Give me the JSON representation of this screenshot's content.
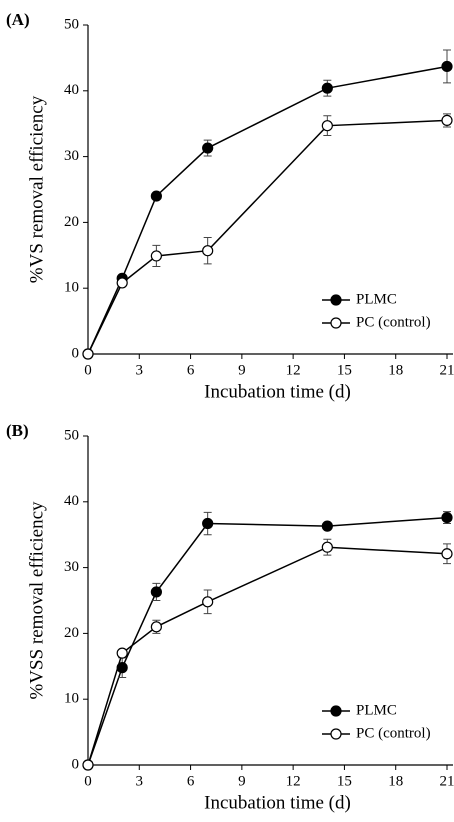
{
  "chart_data": [
    {
      "type": "line",
      "panel_label": "(A)",
      "xlabel": "Incubation time (d)",
      "ylabel": "%VS removal efficiency",
      "x": [
        0,
        2,
        4,
        7,
        14,
        21
      ],
      "series": [
        {
          "name": "PLMC",
          "color": "#000000",
          "marker_fill": "#000000",
          "values": [
            0,
            11.5,
            24,
            31.3,
            40.4,
            43.7
          ],
          "errors": [
            0,
            0.5,
            0.3,
            1.2,
            1.2,
            2.5
          ]
        },
        {
          "name": "PC (control)",
          "color": "#000000",
          "marker_fill": "#ffffff",
          "values": [
            0,
            10.8,
            14.9,
            15.7,
            34.7,
            35.5
          ],
          "errors": [
            0,
            0.3,
            1.6,
            2.0,
            1.5,
            1.0
          ]
        }
      ],
      "xlim": [
        0,
        21
      ],
      "xticks": [
        0,
        3,
        6,
        9,
        12,
        15,
        18,
        21
      ],
      "ylim": [
        0,
        50
      ],
      "yticks": [
        0,
        10,
        20,
        30,
        40,
        50
      ],
      "legend": "lower right"
    },
    {
      "type": "line",
      "panel_label": "(B)",
      "xlabel": "Incubation time (d)",
      "ylabel": "%VSS removal efficiency",
      "x": [
        0,
        2,
        4,
        7,
        14,
        21
      ],
      "series": [
        {
          "name": "PLMC",
          "color": "#000000",
          "marker_fill": "#000000",
          "values": [
            0,
            14.8,
            26.3,
            36.7,
            36.3,
            37.6
          ],
          "errors": [
            0,
            1.5,
            1.3,
            1.7,
            0.4,
            0.9
          ]
        },
        {
          "name": "PC (control)",
          "color": "#000000",
          "marker_fill": "#ffffff",
          "values": [
            0,
            17,
            21,
            24.8,
            33.1,
            32.1
          ],
          "errors": [
            0,
            0.3,
            1.0,
            1.8,
            1.2,
            1.5
          ]
        }
      ],
      "xlim": [
        0,
        21
      ],
      "xticks": [
        0,
        3,
        6,
        9,
        12,
        15,
        18,
        21
      ],
      "ylim": [
        0,
        50
      ],
      "yticks": [
        0,
        10,
        20,
        30,
        40,
        50
      ],
      "legend": "lower right"
    }
  ]
}
